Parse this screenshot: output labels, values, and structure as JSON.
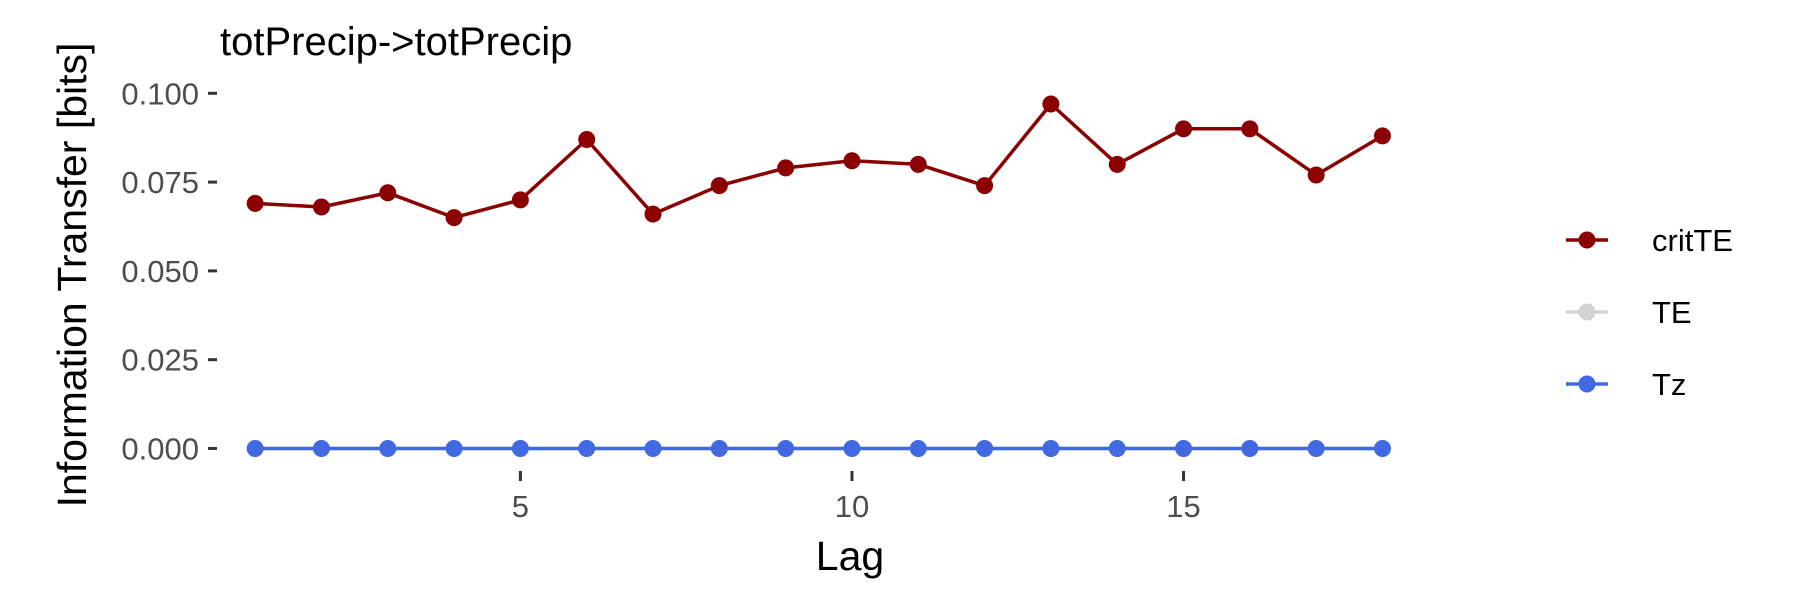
{
  "chart_data": {
    "type": "line",
    "title": "totPrecip->totPrecip",
    "xlabel": "Lag",
    "ylabel": "Information Transfer [bits]",
    "x": [
      1,
      2,
      3,
      4,
      5,
      6,
      7,
      8,
      9,
      10,
      11,
      12,
      13,
      14,
      15,
      16,
      17,
      18
    ],
    "xlim": [
      0.47,
      19.41
    ],
    "ylim": [
      -0.0055,
      0.106
    ],
    "xticks": [
      5,
      10,
      15
    ],
    "xtick_labels": [
      "5",
      "10",
      "15"
    ],
    "yticks": [
      0,
      0.025,
      0.05,
      0.075,
      0.1
    ],
    "ytick_labels": [
      "0.000",
      "0.025",
      "0.050",
      "0.075",
      "0.100"
    ],
    "grid": false,
    "legend_position": "right",
    "series": [
      {
        "name": "critTE",
        "color": "#8b0000",
        "values": [
          0.069,
          0.068,
          0.072,
          0.065,
          0.07,
          0.087,
          0.066,
          0.074,
          0.079,
          0.081,
          0.08,
          0.074,
          0.097,
          0.08,
          0.09,
          0.09,
          0.077,
          0.088
        ]
      },
      {
        "name": "TE",
        "color": "#d3d3d3",
        "values": [
          0,
          0,
          0,
          0,
          0,
          0,
          0,
          0,
          0,
          0,
          0,
          0,
          0,
          0,
          0,
          0,
          0,
          0
        ]
      },
      {
        "name": "Tz",
        "color": "#4169e1",
        "values": [
          0,
          0,
          0,
          0,
          0,
          0,
          0,
          0,
          0,
          0,
          0,
          0,
          0,
          0,
          0,
          0,
          0,
          0
        ]
      }
    ]
  }
}
